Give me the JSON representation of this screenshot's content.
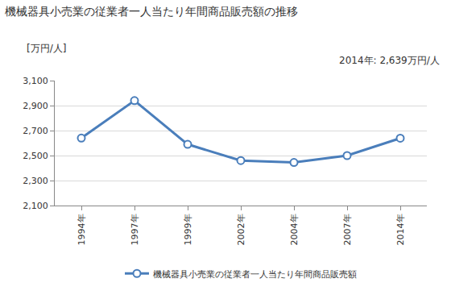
{
  "chart_data": {
    "type": "line",
    "title": "機械器具小売業の従業者一人当たり年間商品販売額の推移",
    "y_label": "[万円/人]",
    "annotations": [
      "2014年: 2,639万円/人"
    ],
    "categories": [
      "1994年",
      "1997年",
      "1999年",
      "2002年",
      "2004年",
      "2007年",
      "2014年"
    ],
    "series": [
      {
        "name": "機械器具小売業の従業者一人当たり年間商品販売額",
        "color": "#4a7ebb",
        "marker": "circle-open",
        "values": [
          2640,
          2940,
          2590,
          2460,
          2445,
          2500,
          2639
        ]
      }
    ],
    "ylim": [
      2100,
      3100
    ],
    "yticks": [
      {
        "value": 2100,
        "label": "2,100"
      },
      {
        "value": 2300,
        "label": "2,300"
      },
      {
        "value": 2500,
        "label": "2,500"
      },
      {
        "value": 2700,
        "label": "2,700"
      },
      {
        "value": 2900,
        "label": "2,900"
      },
      {
        "value": 3100,
        "label": "3,100"
      }
    ],
    "grid": true,
    "legend": "bottom"
  }
}
